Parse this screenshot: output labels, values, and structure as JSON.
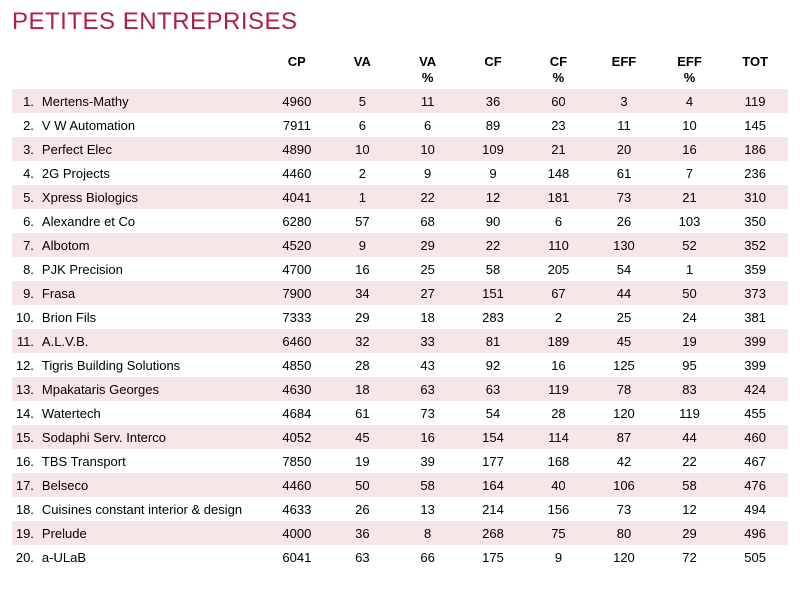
{
  "title": "PETITES ENTREPRISES",
  "colors": {
    "title": "#b01e45",
    "row_odd": "#f7e6e6",
    "row_even": "#ffffff",
    "text": "#000000"
  },
  "table": {
    "columns": [
      "CP",
      "VA",
      "VA %",
      "CF",
      "CF %",
      "EFF",
      "EFF %",
      "TOT"
    ],
    "rows": [
      {
        "rank": "1.",
        "name": "Mertens-Mathy",
        "cp": "4960",
        "va": "5",
        "vap": "11",
        "cf": "36",
        "cfp": "60",
        "eff": "3",
        "effp": "4",
        "tot": "119"
      },
      {
        "rank": "2.",
        "name": "V W Automation",
        "cp": "7911",
        "va": "6",
        "vap": "6",
        "cf": "89",
        "cfp": "23",
        "eff": "11",
        "effp": "10",
        "tot": "145"
      },
      {
        "rank": "3.",
        "name": "Perfect Elec",
        "cp": "4890",
        "va": "10",
        "vap": "10",
        "cf": "109",
        "cfp": "21",
        "eff": "20",
        "effp": "16",
        "tot": "186"
      },
      {
        "rank": "4.",
        "name": "2G Projects",
        "cp": "4460",
        "va": "2",
        "vap": "9",
        "cf": "9",
        "cfp": "148",
        "eff": "61",
        "effp": "7",
        "tot": "236"
      },
      {
        "rank": "5.",
        "name": "Xpress Biologics",
        "cp": "4041",
        "va": "1",
        "vap": "22",
        "cf": "12",
        "cfp": "181",
        "eff": "73",
        "effp": "21",
        "tot": "310"
      },
      {
        "rank": "6.",
        "name": "Alexandre et Co",
        "cp": "6280",
        "va": "57",
        "vap": "68",
        "cf": "90",
        "cfp": "6",
        "eff": "26",
        "effp": "103",
        "tot": "350"
      },
      {
        "rank": "7.",
        "name": "Albotom",
        "cp": "4520",
        "va": "9",
        "vap": "29",
        "cf": "22",
        "cfp": "110",
        "eff": "130",
        "effp": "52",
        "tot": "352"
      },
      {
        "rank": "8.",
        "name": "PJK Precision",
        "cp": "4700",
        "va": "16",
        "vap": "25",
        "cf": "58",
        "cfp": "205",
        "eff": "54",
        "effp": "1",
        "tot": "359"
      },
      {
        "rank": "9.",
        "name": "Frasa",
        "cp": "7900",
        "va": "34",
        "vap": "27",
        "cf": "151",
        "cfp": "67",
        "eff": "44",
        "effp": "50",
        "tot": "373"
      },
      {
        "rank": "10.",
        "name": "Brion Fils",
        "cp": "7333",
        "va": "29",
        "vap": "18",
        "cf": "283",
        "cfp": "2",
        "eff": "25",
        "effp": "24",
        "tot": "381"
      },
      {
        "rank": "11.",
        "name": "A.L.V.B.",
        "cp": "6460",
        "va": "32",
        "vap": "33",
        "cf": "81",
        "cfp": "189",
        "eff": "45",
        "effp": "19",
        "tot": "399"
      },
      {
        "rank": "12.",
        "name": "Tigris Building Solutions",
        "cp": "4850",
        "va": "28",
        "vap": "43",
        "cf": "92",
        "cfp": "16",
        "eff": "125",
        "effp": "95",
        "tot": "399"
      },
      {
        "rank": "13.",
        "name": "Mpakataris Georges",
        "cp": "4630",
        "va": "18",
        "vap": "63",
        "cf": "63",
        "cfp": "119",
        "eff": "78",
        "effp": "83",
        "tot": "424"
      },
      {
        "rank": "14.",
        "name": "Watertech",
        "cp": "4684",
        "va": "61",
        "vap": "73",
        "cf": "54",
        "cfp": "28",
        "eff": "120",
        "effp": "119",
        "tot": "455"
      },
      {
        "rank": "15.",
        "name": "Sodaphi Serv. Interco",
        "cp": "4052",
        "va": "45",
        "vap": "16",
        "cf": "154",
        "cfp": "114",
        "eff": "87",
        "effp": "44",
        "tot": "460"
      },
      {
        "rank": "16.",
        "name": "TBS Transport",
        "cp": "7850",
        "va": "19",
        "vap": "39",
        "cf": "177",
        "cfp": "168",
        "eff": "42",
        "effp": "22",
        "tot": "467"
      },
      {
        "rank": "17.",
        "name": "Belseco",
        "cp": "4460",
        "va": "50",
        "vap": "58",
        "cf": "164",
        "cfp": "40",
        "eff": "106",
        "effp": "58",
        "tot": "476"
      },
      {
        "rank": "18.",
        "name": "Cuisines constant interior & design",
        "cp": "4633",
        "va": "26",
        "vap": "13",
        "cf": "214",
        "cfp": "156",
        "eff": "73",
        "effp": "12",
        "tot": "494"
      },
      {
        "rank": "19.",
        "name": "Prelude",
        "cp": "4000",
        "va": "36",
        "vap": "8",
        "cf": "268",
        "cfp": "75",
        "eff": "80",
        "effp": "29",
        "tot": "496"
      },
      {
        "rank": "20.",
        "name": "a-ULaB",
        "cp": "6041",
        "va": "63",
        "vap": "66",
        "cf": "175",
        "cfp": "9",
        "eff": "120",
        "effp": "72",
        "tot": "505"
      }
    ]
  }
}
